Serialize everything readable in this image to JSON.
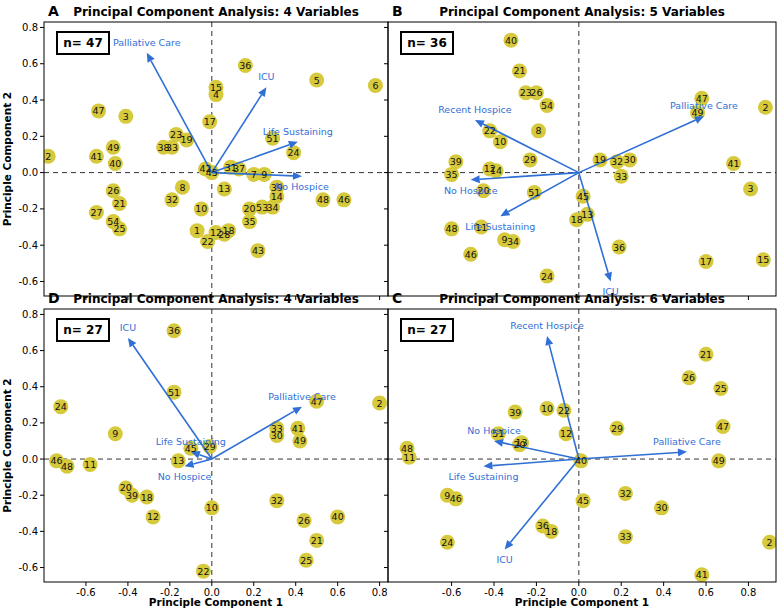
{
  "chart_data": [
    {
      "type": "scatter",
      "panel_label": "A",
      "title": "Principal Component Analysis: 4 Variables",
      "annotation": "n= 47",
      "y_label": "Principle Component 2",
      "tick_labels": "y",
      "color": "#d6c93c",
      "marker": "circle",
      "xlim": [
        -0.8,
        0.84
      ],
      "ylim": [
        -0.68,
        0.83
      ],
      "xticks": [
        -0.6,
        -0.4,
        -0.2,
        {
          "value": 0,
          "label": "0.0"
        },
        0.2,
        0.4,
        0.6,
        0.8
      ],
      "yticks": [
        -0.6,
        -0.4,
        -0.2,
        {
          "value": 0,
          "label": "0.0"
        },
        0.2,
        0.4,
        0.6,
        0.8
      ],
      "point_labels": [
        "36",
        "5",
        "6",
        "15",
        "4",
        "47",
        "3",
        "17",
        "2",
        "23",
        "19",
        "38",
        "33",
        "49",
        "41",
        "40",
        "51",
        "24",
        "42",
        "31",
        "37",
        "7",
        "9",
        "26",
        "8",
        "13",
        "39",
        "14",
        "21",
        "32",
        "48",
        "46",
        "20",
        "53",
        "34",
        "27",
        "10",
        "35",
        "54",
        "25",
        "1",
        "12",
        "28",
        "22",
        "43",
        "18",
        "45"
      ],
      "x": [
        0.16,
        0.5,
        0.78,
        0.02,
        0.02,
        -0.54,
        -0.41,
        -0.01,
        -0.78,
        -0.17,
        -0.12,
        -0.23,
        -0.19,
        -0.47,
        -0.55,
        -0.46,
        0.29,
        0.39,
        -0.03,
        0.09,
        0.13,
        0.2,
        0.25,
        -0.47,
        -0.14,
        0.06,
        0.31,
        0.31,
        -0.44,
        -0.19,
        0.53,
        0.63,
        0.18,
        0.24,
        0.29,
        -0.55,
        -0.05,
        0.18,
        -0.47,
        -0.44,
        -0.07,
        0.02,
        0.06,
        -0.02,
        0.22,
        0.08,
        0.0
      ],
      "values": [
        0.59,
        0.51,
        0.48,
        0.47,
        0.43,
        0.34,
        0.31,
        0.28,
        0.09,
        0.21,
        0.18,
        0.14,
        0.14,
        0.14,
        0.09,
        0.05,
        0.19,
        0.11,
        0.02,
        0.03,
        0.02,
        -0.01,
        -0.01,
        -0.1,
        -0.08,
        -0.09,
        -0.08,
        -0.13,
        -0.17,
        -0.15,
        -0.15,
        -0.15,
        -0.2,
        -0.19,
        -0.19,
        -0.22,
        -0.2,
        -0.27,
        -0.27,
        -0.31,
        -0.32,
        -0.33,
        -0.34,
        -0.38,
        -0.43,
        -0.32,
        0.0
      ],
      "loadings": [
        {
          "name": "Palliative Care",
          "x": -0.31,
          "y": 0.66
        },
        {
          "name": "ICU",
          "x": 0.26,
          "y": 0.47
        },
        {
          "name": "Life Sustaining",
          "x": 0.41,
          "y": 0.17
        },
        {
          "name": "No Hospice",
          "x": 0.43,
          "y": -0.02
        }
      ],
      "loading_color": "#2f6fd6"
    },
    {
      "type": "scatter",
      "panel_label": "B",
      "title": "Principal Component Analysis: 5 Variables",
      "annotation": "n= 36",
      "tick_labels": false,
      "color": "#d6c93c",
      "marker": "circle",
      "xlim": [
        -0.9,
        0.93
      ],
      "ylim": [
        -0.68,
        0.83
      ],
      "xticks": [
        -0.6,
        -0.4,
        -0.2,
        {
          "value": 0,
          "label": "0.0"
        },
        0.2,
        0.4,
        0.6,
        0.8
      ],
      "yticks": [
        -0.6,
        -0.4,
        -0.2,
        {
          "value": 0,
          "label": "0.0"
        },
        0.2,
        0.4,
        0.6,
        0.8
      ],
      "point_labels": [
        "40",
        "21",
        "23",
        "26",
        "54",
        "47",
        "49",
        "2",
        "22",
        "10",
        "8",
        "29",
        "19",
        "32",
        "30",
        "41",
        "33",
        "3",
        "39",
        "35",
        "12",
        "14",
        "20",
        "51",
        "45",
        "18",
        "13",
        "36",
        "48",
        "11",
        "34",
        "9",
        "46",
        "24",
        "17",
        "15"
      ],
      "x": [
        -0.32,
        -0.28,
        -0.25,
        -0.2,
        -0.15,
        0.58,
        0.56,
        0.88,
        -0.42,
        -0.37,
        -0.19,
        -0.23,
        0.1,
        0.18,
        0.24,
        0.73,
        0.2,
        0.81,
        -0.58,
        -0.6,
        -0.42,
        -0.39,
        -0.45,
        -0.21,
        0.02,
        -0.01,
        0.04,
        0.19,
        -0.6,
        -0.46,
        -0.31,
        -0.35,
        -0.51,
        -0.15,
        0.6,
        0.87
      ],
      "values": [
        0.73,
        0.56,
        0.44,
        0.44,
        0.37,
        0.41,
        0.33,
        0.36,
        0.23,
        0.17,
        0.23,
        0.07,
        0.07,
        0.06,
        0.07,
        0.05,
        -0.02,
        -0.09,
        0.06,
        -0.01,
        0.02,
        0.01,
        -0.1,
        -0.11,
        -0.13,
        -0.26,
        -0.23,
        -0.41,
        -0.31,
        -0.3,
        -0.38,
        -0.37,
        -0.45,
        -0.57,
        -0.49,
        -0.48
      ],
      "loadings": [
        {
          "name": "Recent Hospice",
          "x": -0.49,
          "y": 0.29
        },
        {
          "name": "Palliative Care",
          "x": 0.59,
          "y": 0.31
        },
        {
          "name": "No Hospice",
          "x": -0.51,
          "y": -0.04
        },
        {
          "name": "Life Sustaining",
          "x": -0.37,
          "y": -0.24
        },
        {
          "name": "ICU",
          "x": 0.15,
          "y": -0.6
        }
      ],
      "loading_color": "#2f6fd6"
    },
    {
      "type": "scatter",
      "panel_label": "D",
      "title": "Principal Component Analysis: 4 Variables",
      "annotation": "n= 27",
      "x_label": "Principle Component 1",
      "y_label": "Principle Component 2",
      "tick_labels": true,
      "color": "#d6c93c",
      "marker": "circle",
      "xlim": [
        -0.8,
        0.84
      ],
      "ylim": [
        -0.68,
        0.83
      ],
      "xticks": [
        -0.6,
        -0.4,
        -0.2,
        {
          "value": 0,
          "label": "0.0"
        },
        0.2,
        0.4,
        0.6,
        0.8
      ],
      "yticks": [
        -0.6,
        -0.4,
        -0.2,
        {
          "value": 0,
          "label": "0.0"
        },
        0.2,
        0.4,
        0.6,
        0.8
      ],
      "point_labels": [
        "36",
        "51",
        "24",
        "47",
        "2",
        "9",
        "33",
        "30",
        "41",
        "49",
        "29",
        "45",
        "13",
        "46",
        "48",
        "11",
        "20",
        "39",
        "18",
        "32",
        "26",
        "40",
        "10",
        "12",
        "21",
        "25",
        "22"
      ],
      "x": [
        -0.18,
        -0.18,
        -0.72,
        0.5,
        0.8,
        -0.46,
        0.31,
        0.31,
        0.41,
        0.42,
        -0.01,
        -0.1,
        -0.16,
        -0.74,
        -0.69,
        -0.58,
        -0.41,
        -0.38,
        -0.31,
        0.31,
        0.44,
        0.6,
        0.0,
        -0.28,
        0.5,
        0.45,
        -0.04
      ],
      "values": [
        0.71,
        0.37,
        0.29,
        0.32,
        0.31,
        0.14,
        0.17,
        0.13,
        0.17,
        0.1,
        0.07,
        0.06,
        -0.01,
        -0.01,
        -0.04,
        -0.03,
        -0.16,
        -0.2,
        -0.21,
        -0.23,
        -0.34,
        -0.32,
        -0.27,
        -0.32,
        -0.45,
        -0.56,
        -0.62
      ],
      "loadings": [
        {
          "name": "ICU",
          "x": -0.4,
          "y": 0.67
        },
        {
          "name": "Palliative Care",
          "x": 0.43,
          "y": 0.29
        },
        {
          "name": "Life Sustaining",
          "x": -0.1,
          "y": 0.04
        },
        {
          "name": "No Hospice",
          "x": -0.13,
          "y": -0.04
        }
      ],
      "loading_color": "#2f6fd6"
    },
    {
      "type": "scatter",
      "panel_label": "C",
      "title": "Principal Component Analysis: 6 Variables",
      "annotation": "n= 27",
      "x_label": "Principle Component 1",
      "tick_labels": "x",
      "color": "#d6c93c",
      "marker": "circle",
      "xlim": [
        -0.9,
        0.93
      ],
      "ylim": [
        -0.68,
        0.83
      ],
      "xticks": [
        -0.6,
        -0.4,
        -0.2,
        {
          "value": 0,
          "label": "0.0"
        },
        0.2,
        0.4,
        0.6,
        0.8
      ],
      "yticks": [
        -0.6,
        -0.4,
        -0.2,
        {
          "value": 0,
          "label": "0.0"
        },
        0.2,
        0.4,
        0.6,
        0.8
      ],
      "point_labels": [
        "21",
        "26",
        "25",
        "22",
        "47",
        "39",
        "10",
        "51",
        "20",
        "12",
        "29",
        "48",
        "11",
        "49",
        "9",
        "46",
        "32",
        "30",
        "45",
        "36",
        "18",
        "24",
        "33",
        "41",
        "2",
        "13",
        "40"
      ],
      "x": [
        0.6,
        0.52,
        0.67,
        -0.07,
        0.68,
        -0.3,
        -0.15,
        -0.38,
        -0.28,
        -0.06,
        0.18,
        -0.81,
        -0.8,
        0.66,
        -0.62,
        -0.58,
        0.22,
        0.39,
        0.02,
        -0.17,
        -0.13,
        -0.62,
        0.22,
        0.58,
        0.9,
        -0.27,
        0.01
      ],
      "values": [
        0.58,
        0.45,
        0.39,
        0.27,
        0.18,
        0.26,
        0.28,
        0.14,
        0.08,
        0.14,
        0.17,
        0.06,
        0.01,
        -0.01,
        -0.2,
        -0.22,
        -0.19,
        -0.27,
        -0.23,
        -0.37,
        -0.4,
        -0.46,
        -0.43,
        -0.64,
        -0.46,
        0.09,
        -0.01
      ],
      "loadings": [
        {
          "name": "Recent Hospice",
          "x": -0.15,
          "y": 0.68
        },
        {
          "name": "Palliative Care",
          "x": 0.51,
          "y": 0.04
        },
        {
          "name": "No Hospice",
          "x": -0.4,
          "y": 0.1
        },
        {
          "name": "Life Sustaining",
          "x": -0.45,
          "y": -0.04
        },
        {
          "name": "ICU",
          "x": -0.35,
          "y": -0.5
        }
      ],
      "loading_color": "#2f6fd6"
    }
  ]
}
